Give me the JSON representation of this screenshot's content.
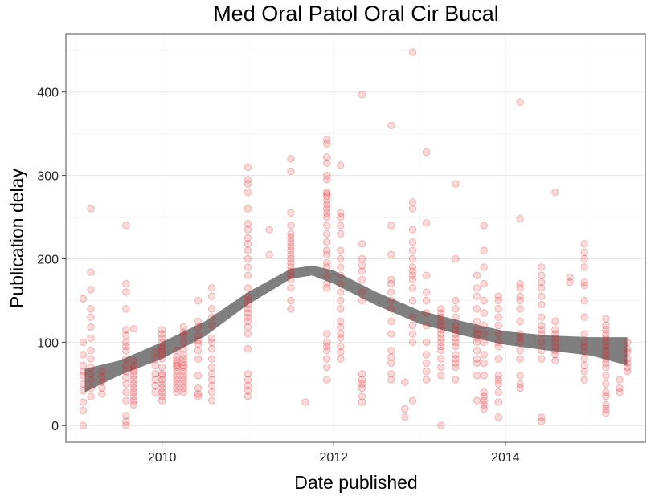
{
  "chart_data": {
    "type": "scatter",
    "title": "Med Oral Patol Oral Cir Bucal",
    "xlabel": "Date published",
    "ylabel": "Publication delay",
    "xlim": [
      2008.88,
      2015.63
    ],
    "ylim": [
      -20,
      470
    ],
    "x_ticks": [
      2010,
      2012,
      2014
    ],
    "x_tick_labels": [
      "2010",
      "2012",
      "2014"
    ],
    "y_ticks": [
      0,
      100,
      200,
      300,
      400
    ],
    "y_tick_labels": [
      "0",
      "100",
      "200",
      "300",
      "400"
    ],
    "grid": true,
    "point_color": "#e41a1c",
    "smooth_color": "#7f7f7f",
    "panel_border_color": "#7f7f7f",
    "groups": [
      {
        "x": 2009.08,
        "y": [
          0,
          18,
          28,
          42,
          50,
          60,
          65,
          72,
          85,
          100,
          152
        ]
      },
      {
        "x": 2009.17,
        "y": [
          35,
          45,
          55,
          62,
          70,
          80,
          90,
          105,
          118,
          130,
          140,
          163,
          184,
          260
        ]
      },
      {
        "x": 2009.3,
        "y": [
          38,
          45,
          52,
          58,
          65
        ]
      },
      {
        "x": 2009.58,
        "y": [
          0,
          5,
          12,
          30,
          40,
          50,
          58,
          65,
          72,
          80,
          90,
          95,
          100,
          108,
          115,
          140,
          160,
          170,
          240
        ]
      },
      {
        "x": 2009.67,
        "y": [
          25,
          30,
          35,
          40,
          45,
          50,
          55,
          60,
          65,
          68,
          72,
          78
        ]
      },
      {
        "x": 2009.67,
        "y": [
          116
        ]
      },
      {
        "x": 2009.92,
        "y": [
          40,
          48,
          55,
          62,
          72,
          80,
          88
        ]
      },
      {
        "x": 2010.0,
        "y": [
          30,
          35,
          40,
          45,
          50,
          55,
          60,
          62,
          70,
          80,
          85,
          88,
          92,
          95,
          100,
          105,
          110,
          115
        ]
      },
      {
        "x": 2010.17,
        "y": [
          40,
          45,
          50,
          55,
          60,
          65,
          70,
          72,
          75,
          78,
          82,
          90
        ]
      },
      {
        "x": 2010.25,
        "y": [
          40,
          45,
          50,
          55,
          60,
          65,
          70,
          72,
          76,
          80,
          85,
          92,
          100,
          108,
          112,
          118
        ]
      },
      {
        "x": 2010.42,
        "y": [
          35,
          38,
          45,
          60,
          80,
          90,
          98,
          102,
          108,
          118,
          125,
          150
        ]
      },
      {
        "x": 2010.58,
        "y": [
          30,
          40,
          48,
          55,
          62,
          70,
          80,
          92,
          100,
          105,
          120,
          130,
          140,
          155,
          165
        ]
      },
      {
        "x": 2011.0,
        "y": [
          35,
          42,
          48,
          55,
          62,
          92,
          110,
          118,
          125,
          130,
          135,
          140,
          145,
          150,
          155,
          165,
          180,
          190,
          200,
          210,
          218,
          225,
          235,
          242,
          260,
          280,
          290,
          295,
          310
        ]
      },
      {
        "x": 2011.25,
        "y": [
          205,
          235
        ]
      },
      {
        "x": 2011.5,
        "y": [
          140,
          150,
          165,
          175,
          180,
          185,
          190,
          195,
          200,
          205,
          210,
          215,
          220,
          225,
          230,
          240,
          255,
          305,
          320
        ]
      },
      {
        "x": 2011.67,
        "y": [
          28
        ]
      },
      {
        "x": 2011.92,
        "y": [
          55,
          70,
          80,
          90,
          95,
          100,
          110,
          165,
          170,
          180,
          190,
          195,
          205,
          210,
          220,
          230,
          240,
          250,
          255,
          260,
          265,
          270,
          275,
          278,
          280,
          295,
          300,
          315,
          322,
          338,
          343
        ]
      },
      {
        "x": 2012.08,
        "y": [
          80,
          88,
          95,
          105,
          110,
          118,
          125,
          140,
          150,
          160,
          170,
          180,
          190,
          200,
          210,
          230,
          240,
          250,
          255,
          312
        ]
      },
      {
        "x": 2012.33,
        "y": [
          28,
          35,
          45,
          50,
          55,
          62,
          150,
          160,
          175,
          185,
          192,
          200,
          218,
          397
        ]
      },
      {
        "x": 2012.67,
        "y": [
          55,
          62,
          75,
          82,
          90,
          110,
          125,
          140,
          150,
          160,
          170,
          175,
          205,
          240,
          360
        ]
      },
      {
        "x": 2012.83,
        "y": [
          10,
          20,
          52
        ]
      },
      {
        "x": 2012.92,
        "y": [
          30,
          100,
          110,
          120,
          130,
          150,
          165,
          175,
          180,
          185,
          190,
          200,
          210,
          220,
          235,
          260,
          268,
          448
        ]
      },
      {
        "x": 2013.08,
        "y": [
          55,
          65,
          75,
          85,
          100,
          120,
          135,
          150,
          160,
          180,
          243,
          328
        ]
      },
      {
        "x": 2013.25,
        "y": [
          0,
          60,
          70,
          80,
          90,
          95,
          100,
          105,
          110,
          115,
          120,
          125,
          130,
          135,
          140
        ]
      },
      {
        "x": 2013.42,
        "y": [
          55,
          70,
          75,
          80,
          85,
          95,
          100,
          105,
          110,
          115,
          120,
          130,
          140,
          150,
          200,
          290
        ]
      },
      {
        "x": 2013.67,
        "y": [
          30,
          60,
          75,
          80,
          90,
          100,
          105,
          110,
          115,
          125,
          140,
          155,
          165,
          180
        ]
      },
      {
        "x": 2013.75,
        "y": [
          20,
          25,
          30,
          35,
          40,
          60,
          75,
          85,
          100,
          110,
          120,
          135,
          150,
          170,
          190,
          210,
          240
        ]
      },
      {
        "x": 2013.92,
        "y": [
          10,
          28,
          40,
          50,
          55,
          60,
          80,
          95,
          100,
          110,
          120,
          130,
          140,
          150,
          155
        ]
      },
      {
        "x": 2014.17,
        "y": [
          45,
          50,
          60,
          80,
          90,
          100,
          105,
          110,
          125,
          140,
          150,
          155,
          165,
          170,
          248,
          388
        ]
      },
      {
        "x": 2014.42,
        "y": [
          5,
          10,
          80,
          90,
          100,
          110,
          115,
          120,
          130,
          145,
          155,
          165,
          172,
          180,
          190
        ]
      },
      {
        "x": 2014.58,
        "y": [
          78,
          85,
          90,
          95,
          100,
          105,
          110,
          115,
          125,
          280
        ]
      },
      {
        "x": 2014.75,
        "y": [
          172,
          178
        ]
      },
      {
        "x": 2014.92,
        "y": [
          55,
          65,
          72,
          80,
          88,
          95,
          100,
          110,
          130,
          150,
          168,
          172,
          190,
          200,
          208,
          218
        ]
      },
      {
        "x": 2015.17,
        "y": [
          15,
          20,
          25,
          35,
          40,
          50,
          60,
          70,
          75,
          80,
          85,
          90,
          95,
          100,
          105,
          110,
          115,
          120,
          128
        ]
      },
      {
        "x": 2015.33,
        "y": [
          40,
          45,
          55
        ]
      },
      {
        "x": 2015.42,
        "y": [
          65,
          70,
          75,
          80,
          88,
          92,
          100
        ]
      }
    ],
    "smooth_fit": {
      "x": [
        2009.1,
        2009.5,
        2010.0,
        2010.5,
        2011.0,
        2011.5,
        2011.75,
        2012.0,
        2012.5,
        2013.0,
        2013.5,
        2014.0,
        2014.5,
        2015.0,
        2015.42
      ],
      "y_upper": [
        68,
        78,
        100,
        125,
        160,
        188,
        192,
        186,
        160,
        138,
        125,
        113,
        108,
        106,
        106
      ],
      "y_lower": [
        40,
        60,
        80,
        107,
        145,
        176,
        180,
        170,
        144,
        122,
        108,
        97,
        90,
        84,
        72
      ]
    }
  }
}
